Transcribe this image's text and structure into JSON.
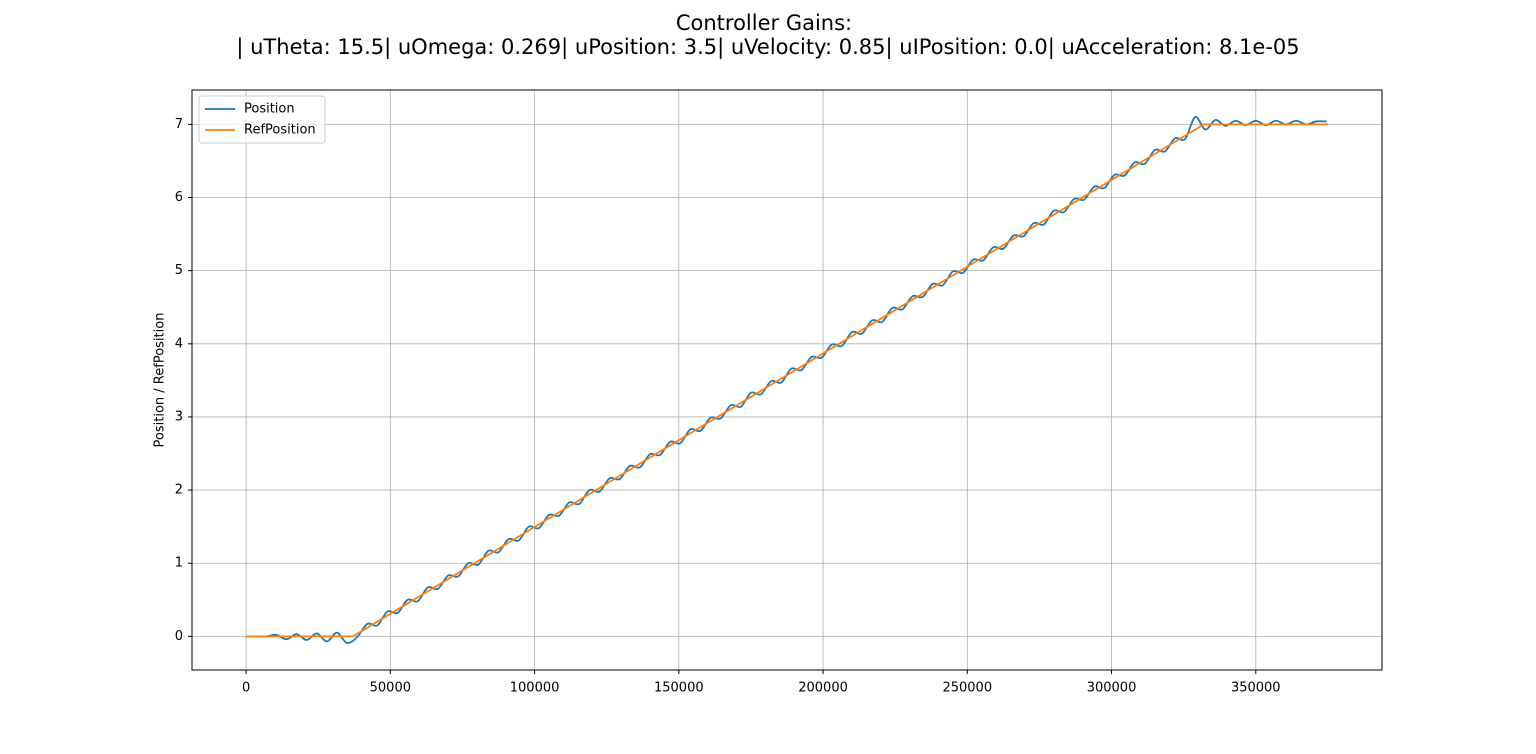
{
  "chart_data": {
    "type": "line",
    "title": "Controller Gains:",
    "subtitle": "| uTheta: 15.5| uOmega: 0.269| uPosition: 3.5| uVelocity: 0.85| uIPosition: 0.0| uAcceleration: 8.1e-05",
    "y_label": "Position / RefPosition",
    "xlim": [
      -18750,
      393750
    ],
    "ylim": [
      -0.46,
      7.47
    ],
    "xticks": [
      0,
      50000,
      100000,
      150000,
      200000,
      250000,
      300000,
      350000
    ],
    "yticks": [
      0,
      1,
      2,
      3,
      4,
      5,
      6,
      7
    ],
    "grid": true,
    "legend": "upper left",
    "series": [
      {
        "name": "Position",
        "color": "#1f77b4",
        "x": [
          0,
          3500,
          7000,
          10500,
          14000,
          17500,
          21000,
          24500,
          28000,
          31500,
          35000,
          38500,
          42000,
          45500,
          49000,
          52500,
          56000,
          59500,
          63000,
          66500,
          70000,
          73500,
          77000,
          80500,
          84000,
          87500,
          91000,
          94500,
          98000,
          101500,
          105000,
          108500,
          112000,
          115500,
          119000,
          122500,
          126000,
          129500,
          133000,
          136500,
          140000,
          143500,
          147000,
          150500,
          154000,
          157500,
          161000,
          164500,
          168000,
          171500,
          175000,
          178500,
          182000,
          185500,
          189000,
          192500,
          196000,
          199500,
          203000,
          206500,
          210000,
          213500,
          217000,
          220500,
          224000,
          227500,
          231000,
          234500,
          238000,
          241500,
          245000,
          248500,
          252000,
          255500,
          259000,
          262500,
          266000,
          269500,
          273000,
          276500,
          280000,
          283500,
          287000,
          290500,
          294000,
          297500,
          301000,
          304500,
          308000,
          311500,
          315000,
          318500,
          322000,
          325500,
          329000,
          332500,
          336000,
          339500,
          343000,
          346500,
          350000,
          353500,
          357000,
          360500,
          364000,
          367500,
          371000,
          374500
        ],
        "values": [
          0,
          0,
          0,
          0.02,
          -0.04,
          0.03,
          -0.05,
          0.04,
          -0.07,
          0.05,
          -0.09,
          -0.01,
          0.17,
          0.15,
          0.34,
          0.32,
          0.5,
          0.48,
          0.67,
          0.65,
          0.83,
          0.82,
          1.0,
          0.98,
          1.17,
          1.15,
          1.33,
          1.31,
          1.5,
          1.48,
          1.66,
          1.65,
          1.83,
          1.81,
          2.0,
          1.98,
          2.16,
          2.15,
          2.33,
          2.31,
          2.49,
          2.48,
          2.66,
          2.64,
          2.83,
          2.81,
          2.99,
          2.98,
          3.16,
          3.14,
          3.33,
          3.31,
          3.49,
          3.47,
          3.66,
          3.64,
          3.82,
          3.81,
          3.99,
          3.97,
          4.16,
          4.14,
          4.32,
          4.3,
          4.49,
          4.47,
          4.65,
          4.64,
          4.82,
          4.8,
          4.99,
          4.97,
          5.15,
          5.14,
          5.32,
          5.3,
          5.48,
          5.47,
          5.65,
          5.63,
          5.82,
          5.8,
          5.98,
          5.97,
          6.15,
          6.13,
          6.31,
          6.3,
          6.48,
          6.46,
          6.65,
          6.63,
          6.81,
          6.8,
          7.1,
          6.93,
          7.06,
          6.98,
          7.05,
          6.99,
          7.05,
          6.99,
          7.05,
          7.0,
          7.05,
          7.0,
          7.04,
          7.04
        ]
      },
      {
        "name": "RefPosition",
        "color": "#ff7f0e",
        "x": [
          0,
          37000,
          332000,
          375000
        ],
        "values": [
          0,
          0,
          7,
          7
        ]
      }
    ]
  }
}
